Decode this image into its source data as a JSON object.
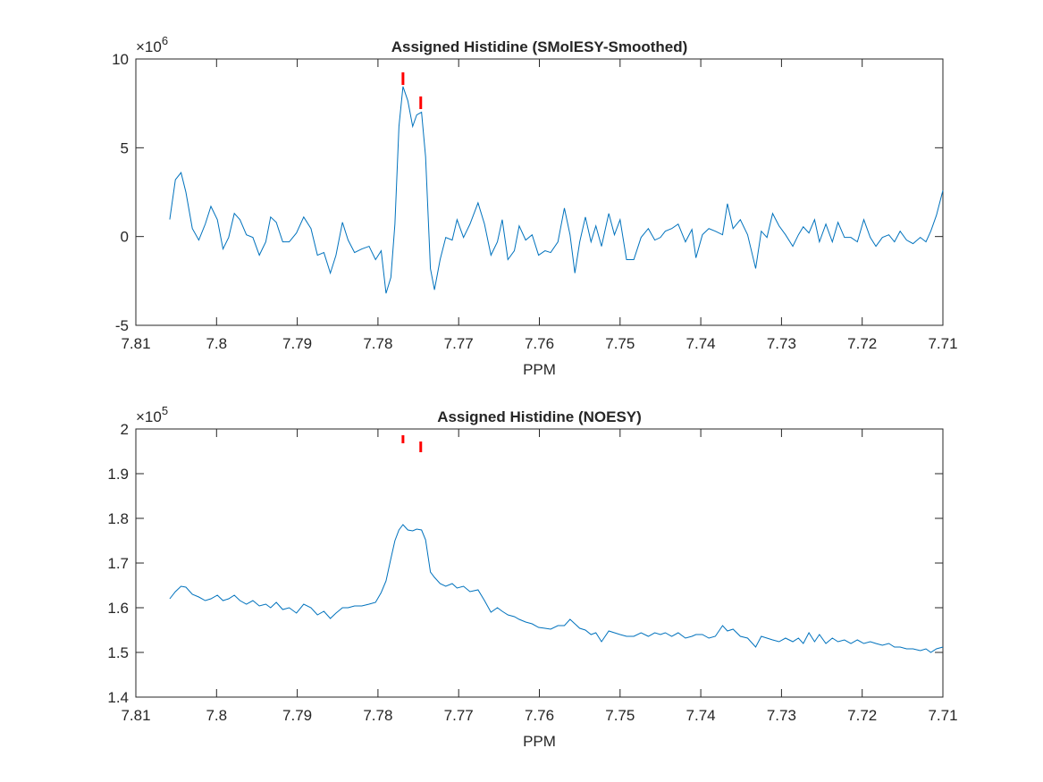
{
  "chart_data": [
    {
      "type": "line",
      "title": "Assigned Histidine (SMolESY-Smoothed)",
      "xlabel": "PPM",
      "y_multiplier": "×10",
      "y_exponent": "6",
      "x": [
        7.8058,
        7.8051,
        7.8044,
        7.8038,
        7.803,
        7.8022,
        7.8014,
        7.8007,
        7.7999,
        7.7992,
        7.7985,
        7.7978,
        7.7971,
        7.7963,
        7.7955,
        7.7947,
        7.7939,
        7.7933,
        7.7926,
        7.7918,
        7.791,
        7.7901,
        7.7892,
        7.7883,
        7.7875,
        7.7867,
        7.7859,
        7.7852,
        7.7844,
        7.7837,
        7.7829,
        7.782,
        7.7811,
        7.7803,
        7.7796,
        7.779,
        7.7784,
        7.7779,
        7.7774,
        7.7769,
        7.7763,
        7.7757,
        7.7752,
        7.7746,
        7.7741,
        7.7735,
        7.773,
        7.7723,
        7.7716,
        7.7708,
        7.7702,
        7.7694,
        7.7686,
        7.7676,
        7.7668,
        7.766,
        7.7652,
        7.7646,
        7.7639,
        7.7631,
        7.7625,
        7.7617,
        7.7609,
        7.7601,
        7.7593,
        7.7586,
        7.7577,
        7.7569,
        7.7562,
        7.7556,
        7.755,
        7.7543,
        7.7536,
        7.753,
        7.7523,
        7.7514,
        7.7507,
        7.75,
        7.7492,
        7.7483,
        7.7474,
        7.7465,
        7.7457,
        7.745,
        7.7444,
        7.7436,
        7.7428,
        7.7419,
        7.7411,
        7.7406,
        7.7398,
        7.739,
        7.7382,
        7.7373,
        7.7367,
        7.736,
        7.7351,
        7.7342,
        7.7332,
        7.7325,
        7.7318,
        7.7311,
        7.7303,
        7.7295,
        7.7286,
        7.7279,
        7.7273,
        7.7266,
        7.7259,
        7.7253,
        7.7245,
        7.7237,
        7.723,
        7.7222,
        7.7214,
        7.7206,
        7.7198,
        7.719,
        7.7183,
        7.7175,
        7.7167,
        7.716,
        7.7153,
        7.7145,
        7.7137,
        7.7128,
        7.7121,
        7.7115,
        7.7108,
        7.71
      ],
      "series": [
        {
          "color": "#0072bd",
          "values": [
            0.96,
            3.2,
            3.6,
            2.5,
            0.45,
            -0.2,
            0.7,
            1.7,
            0.95,
            -0.7,
            -0.05,
            1.3,
            0.95,
            0.1,
            -0.05,
            -1.05,
            -0.3,
            1.1,
            0.8,
            -0.3,
            -0.3,
            0.2,
            1.1,
            0.45,
            -1.05,
            -0.9,
            -2.06,
            -1.05,
            0.8,
            -0.2,
            -0.9,
            -0.7,
            -0.55,
            -1.3,
            -0.8,
            -3.2,
            -2.3,
            0.7,
            6.2,
            8.45,
            7.65,
            6.2,
            6.85,
            7.0,
            4.5,
            -1.8,
            -3.0,
            -1.3,
            -0.05,
            -0.2,
            0.95,
            -0.05,
            0.7,
            1.9,
            0.7,
            -1.05,
            -0.3,
            0.95,
            -1.3,
            -0.8,
            0.6,
            -0.2,
            0.1,
            -1.05,
            -0.8,
            -0.9,
            -0.3,
            1.6,
            0.1,
            -2.06,
            -0.3,
            1.1,
            -0.3,
            0.6,
            -0.55,
            1.3,
            0.1,
            0.95,
            -1.3,
            -1.3,
            -0.05,
            0.45,
            -0.2,
            -0.05,
            0.3,
            0.45,
            0.7,
            -0.3,
            0.4,
            -1.2,
            0.1,
            0.45,
            0.3,
            0.1,
            1.85,
            0.45,
            0.95,
            0.1,
            -1.8,
            0.3,
            -0.05,
            1.3,
            0.6,
            0.1,
            -0.55,
            0.1,
            0.55,
            0.2,
            0.95,
            -0.3,
            0.7,
            -0.3,
            0.8,
            -0.05,
            -0.05,
            -0.3,
            0.95,
            -0.05,
            -0.55,
            -0.05,
            0.1,
            -0.3,
            0.3,
            -0.2,
            -0.4,
            -0.05,
            -0.3,
            0.3,
            1.2,
            2.6
          ]
        }
      ],
      "markers": {
        "color": "#ff0000",
        "x": [
          7.7769,
          7.7747
        ],
        "y_top": [
          9.25,
          7.89
        ],
        "y_bottom": [
          8.54,
          7.18
        ]
      },
      "xlim": [
        7.81,
        7.71
      ],
      "xticks": [
        7.81,
        7.8,
        7.79,
        7.78,
        7.77,
        7.76,
        7.75,
        7.74,
        7.73,
        7.72,
        7.71
      ],
      "ylim": [
        -5,
        10
      ],
      "yticks": [
        -5,
        0,
        5,
        10
      ]
    },
    {
      "type": "line",
      "title": "Assigned Histidine (NOESY)",
      "xlabel": "PPM",
      "y_multiplier": "×10",
      "y_exponent": "5",
      "x": [
        7.8058,
        7.8051,
        7.8044,
        7.8038,
        7.803,
        7.8022,
        7.8014,
        7.8007,
        7.7999,
        7.7992,
        7.7985,
        7.7978,
        7.7971,
        7.7963,
        7.7955,
        7.7947,
        7.7939,
        7.7933,
        7.7926,
        7.7918,
        7.791,
        7.7901,
        7.7892,
        7.7883,
        7.7875,
        7.7867,
        7.7859,
        7.7852,
        7.7844,
        7.7837,
        7.7829,
        7.782,
        7.7811,
        7.7803,
        7.7796,
        7.779,
        7.7784,
        7.7779,
        7.7774,
        7.7769,
        7.7763,
        7.7757,
        7.7752,
        7.7746,
        7.7741,
        7.7735,
        7.773,
        7.7723,
        7.7716,
        7.7708,
        7.7702,
        7.7694,
        7.7686,
        7.7676,
        7.7668,
        7.766,
        7.7652,
        7.7646,
        7.7639,
        7.7631,
        7.7625,
        7.7617,
        7.7609,
        7.7601,
        7.7593,
        7.7586,
        7.7577,
        7.7569,
        7.7562,
        7.7556,
        7.755,
        7.7543,
        7.7536,
        7.753,
        7.7523,
        7.7514,
        7.7507,
        7.75,
        7.7492,
        7.7483,
        7.7474,
        7.7465,
        7.7457,
        7.745,
        7.7444,
        7.7436,
        7.7428,
        7.7419,
        7.7411,
        7.7406,
        7.7398,
        7.739,
        7.7382,
        7.7373,
        7.7367,
        7.736,
        7.7351,
        7.7342,
        7.7332,
        7.7325,
        7.7318,
        7.7311,
        7.7303,
        7.7295,
        7.7286,
        7.7279,
        7.7273,
        7.7266,
        7.7259,
        7.7253,
        7.7245,
        7.7237,
        7.723,
        7.7222,
        7.7214,
        7.7206,
        7.7198,
        7.719,
        7.7183,
        7.7175,
        7.7167,
        7.716,
        7.7153,
        7.7145,
        7.7137,
        7.7128,
        7.7121,
        7.7115,
        7.7108,
        7.71
      ],
      "series": [
        {
          "color": "#0072bd",
          "values": [
            1.62,
            1.636,
            1.648,
            1.646,
            1.63,
            1.624,
            1.616,
            1.62,
            1.628,
            1.616,
            1.62,
            1.628,
            1.616,
            1.608,
            1.616,
            1.604,
            1.608,
            1.6,
            1.612,
            1.596,
            1.6,
            1.588,
            1.608,
            1.6,
            1.584,
            1.592,
            1.576,
            1.588,
            1.6,
            1.6,
            1.604,
            1.604,
            1.608,
            1.612,
            1.634,
            1.66,
            1.71,
            1.75,
            1.774,
            1.786,
            1.774,
            1.772,
            1.776,
            1.774,
            1.752,
            1.68,
            1.668,
            1.654,
            1.648,
            1.654,
            1.644,
            1.648,
            1.636,
            1.64,
            1.616,
            1.59,
            1.6,
            1.592,
            1.584,
            1.58,
            1.574,
            1.568,
            1.564,
            1.556,
            1.554,
            1.552,
            1.56,
            1.56,
            1.574,
            1.564,
            1.554,
            1.55,
            1.54,
            1.544,
            1.524,
            1.548,
            1.544,
            1.54,
            1.536,
            1.536,
            1.544,
            1.536,
            1.544,
            1.54,
            1.544,
            1.536,
            1.544,
            1.532,
            1.536,
            1.54,
            1.54,
            1.532,
            1.536,
            1.56,
            1.548,
            1.552,
            1.536,
            1.532,
            1.512,
            1.536,
            1.532,
            1.528,
            1.524,
            1.532,
            1.524,
            1.532,
            1.52,
            1.544,
            1.524,
            1.54,
            1.52,
            1.532,
            1.524,
            1.528,
            1.52,
            1.528,
            1.52,
            1.524,
            1.52,
            1.516,
            1.52,
            1.512,
            1.512,
            1.508,
            1.508,
            1.504,
            1.508,
            1.5,
            1.508,
            1.512
          ]
        }
      ],
      "markers": {
        "color": "#ff0000",
        "x": [
          7.7769,
          7.7747
        ],
        "y_top": [
          1.986,
          1.972
        ],
        "y_bottom": [
          1.968,
          1.948
        ]
      },
      "xlim": [
        7.81,
        7.71
      ],
      "xticks": [
        7.81,
        7.8,
        7.79,
        7.78,
        7.77,
        7.76,
        7.75,
        7.74,
        7.73,
        7.72,
        7.71
      ],
      "ylim": [
        1.4,
        2
      ],
      "yticks": [
        1.4,
        1.5,
        1.6,
        1.7,
        1.8,
        1.9,
        2
      ]
    }
  ]
}
